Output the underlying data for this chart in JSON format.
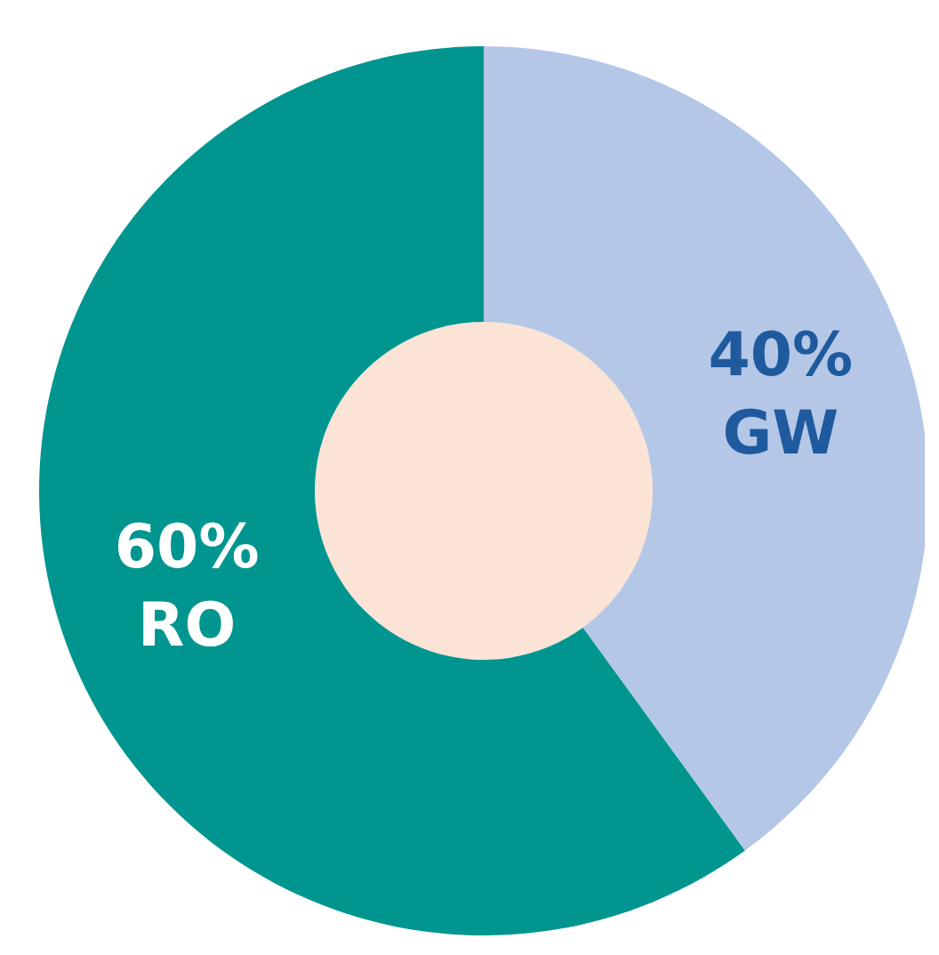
{
  "chart_data": {
    "type": "donut",
    "categories": [
      "RO",
      "GW"
    ],
    "values": [
      60,
      40
    ],
    "colors": [
      "#00968f",
      "#b4c7e7"
    ],
    "value_labels": [
      "60%",
      "40%"
    ],
    "legend": false
  }
}
